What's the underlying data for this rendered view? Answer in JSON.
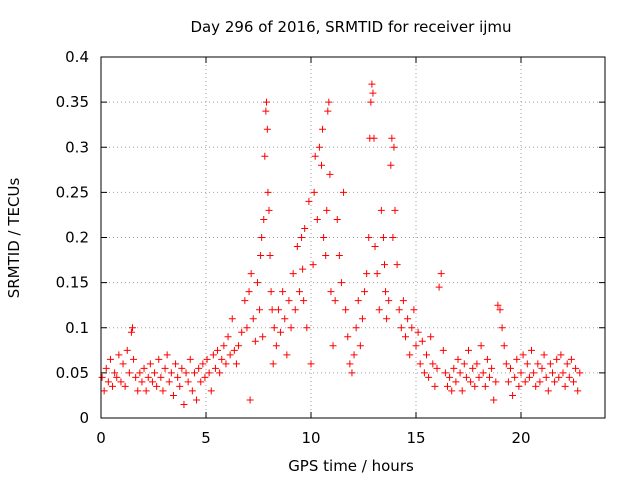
{
  "chart_data": {
    "type": "scatter",
    "title": "Day 296 of 2016, SRMTID for receiver ijmu",
    "xlabel": "GPS time / hours",
    "ylabel": "SRMTID / TECUs",
    "xlim": [
      0,
      24
    ],
    "ylim": [
      0,
      0.4
    ],
    "xticks": [
      0,
      5,
      10,
      15,
      20
    ],
    "yticks": [
      0,
      0.05,
      0.1,
      0.15,
      0.2,
      0.25,
      0.3,
      0.35,
      0.4
    ],
    "xtick_labels": [
      "0",
      "5",
      "10",
      "15",
      "20"
    ],
    "ytick_labels": [
      "0",
      "0.05",
      "0.1",
      "0.15",
      "0.2",
      "0.25",
      "0.3",
      "0.35",
      "0.4"
    ],
    "grid": true,
    "marker": "+",
    "marker_color": "#ff0000",
    "series": [
      {
        "name": "SRMTID",
        "points": [
          [
            0.05,
            0.045
          ],
          [
            0.15,
            0.03
          ],
          [
            0.25,
            0.055
          ],
          [
            0.35,
            0.04
          ],
          [
            0.45,
            0.065
          ],
          [
            0.55,
            0.035
          ],
          [
            0.65,
            0.05
          ],
          [
            0.75,
            0.045
          ],
          [
            0.85,
            0.07
          ],
          [
            0.95,
            0.04
          ],
          [
            1.05,
            0.06
          ],
          [
            1.15,
            0.035
          ],
          [
            1.25,
            0.075
          ],
          [
            1.35,
            0.05
          ],
          [
            1.45,
            0.095
          ],
          [
            1.5,
            0.1
          ],
          [
            1.55,
            0.065
          ],
          [
            1.65,
            0.045
          ],
          [
            1.75,
            0.03
          ],
          [
            1.85,
            0.05
          ],
          [
            1.95,
            0.04
          ],
          [
            2.05,
            0.055
          ],
          [
            2.15,
            0.03
          ],
          [
            2.25,
            0.045
          ],
          [
            2.35,
            0.06
          ],
          [
            2.45,
            0.04
          ],
          [
            2.55,
            0.05
          ],
          [
            2.65,
            0.035
          ],
          [
            2.75,
            0.065
          ],
          [
            2.85,
            0.045
          ],
          [
            2.95,
            0.03
          ],
          [
            3.05,
            0.055
          ],
          [
            3.15,
            0.07
          ],
          [
            3.25,
            0.04
          ],
          [
            3.35,
            0.05
          ],
          [
            3.45,
            0.025
          ],
          [
            3.55,
            0.06
          ],
          [
            3.65,
            0.045
          ],
          [
            3.75,
            0.035
          ],
          [
            3.85,
            0.055
          ],
          [
            3.95,
            0.015
          ],
          [
            4.05,
            0.05
          ],
          [
            4.15,
            0.04
          ],
          [
            4.25,
            0.065
          ],
          [
            4.35,
            0.03
          ],
          [
            4.45,
            0.05
          ],
          [
            4.55,
            0.02
          ],
          [
            4.65,
            0.055
          ],
          [
            4.75,
            0.04
          ],
          [
            4.85,
            0.06
          ],
          [
            4.95,
            0.045
          ],
          [
            5.05,
            0.065
          ],
          [
            5.15,
            0.05
          ],
          [
            5.25,
            0.03
          ],
          [
            5.35,
            0.07
          ],
          [
            5.45,
            0.055
          ],
          [
            5.55,
            0.075
          ],
          [
            5.65,
            0.05
          ],
          [
            5.75,
            0.065
          ],
          [
            5.85,
            0.08
          ],
          [
            5.95,
            0.06
          ],
          [
            6.05,
            0.09
          ],
          [
            6.15,
            0.07
          ],
          [
            6.25,
            0.11
          ],
          [
            6.35,
            0.075
          ],
          [
            6.45,
            0.06
          ],
          [
            6.55,
            0.08
          ],
          [
            6.7,
            0.095
          ],
          [
            6.85,
            0.13
          ],
          [
            6.95,
            0.1
          ],
          [
            7.05,
            0.14
          ],
          [
            7.1,
            0.02
          ],
          [
            7.15,
            0.16
          ],
          [
            7.25,
            0.11
          ],
          [
            7.35,
            0.085
          ],
          [
            7.45,
            0.15
          ],
          [
            7.55,
            0.12
          ],
          [
            7.6,
            0.18
          ],
          [
            7.65,
            0.2
          ],
          [
            7.7,
            0.09
          ],
          [
            7.75,
            0.22
          ],
          [
            7.8,
            0.29
          ],
          [
            7.85,
            0.34
          ],
          [
            7.88,
            0.35
          ],
          [
            7.92,
            0.32
          ],
          [
            7.95,
            0.25
          ],
          [
            8.0,
            0.23
          ],
          [
            8.05,
            0.18
          ],
          [
            8.1,
            0.14
          ],
          [
            8.15,
            0.12
          ],
          [
            8.2,
            0.06
          ],
          [
            8.25,
            0.1
          ],
          [
            8.35,
            0.08
          ],
          [
            8.45,
            0.12
          ],
          [
            8.55,
            0.095
          ],
          [
            8.65,
            0.14
          ],
          [
            8.75,
            0.11
          ],
          [
            8.85,
            0.07
          ],
          [
            8.95,
            0.13
          ],
          [
            9.05,
            0.1
          ],
          [
            9.15,
            0.16
          ],
          [
            9.25,
            0.12
          ],
          [
            9.35,
            0.19
          ],
          [
            9.45,
            0.14
          ],
          [
            9.55,
            0.2
          ],
          [
            9.6,
            0.165
          ],
          [
            9.65,
            0.13
          ],
          [
            9.7,
            0.21
          ],
          [
            9.8,
            0.1
          ],
          [
            9.9,
            0.24
          ],
          [
            10.0,
            0.06
          ],
          [
            10.1,
            0.17
          ],
          [
            10.15,
            0.25
          ],
          [
            10.2,
            0.29
          ],
          [
            10.3,
            0.22
          ],
          [
            10.4,
            0.3
          ],
          [
            10.5,
            0.28
          ],
          [
            10.55,
            0.32
          ],
          [
            10.6,
            0.2
          ],
          [
            10.7,
            0.18
          ],
          [
            10.75,
            0.23
          ],
          [
            10.8,
            0.34
          ],
          [
            10.85,
            0.35
          ],
          [
            10.9,
            0.27
          ],
          [
            10.95,
            0.14
          ],
          [
            11.05,
            0.08
          ],
          [
            11.15,
            0.13
          ],
          [
            11.25,
            0.22
          ],
          [
            11.35,
            0.18
          ],
          [
            11.45,
            0.15
          ],
          [
            11.55,
            0.25
          ],
          [
            11.65,
            0.12
          ],
          [
            11.75,
            0.09
          ],
          [
            11.85,
            0.06
          ],
          [
            11.95,
            0.05
          ],
          [
            12.05,
            0.07
          ],
          [
            12.15,
            0.1
          ],
          [
            12.25,
            0.13
          ],
          [
            12.35,
            0.08
          ],
          [
            12.45,
            0.11
          ],
          [
            12.55,
            0.14
          ],
          [
            12.65,
            0.16
          ],
          [
            12.75,
            0.2
          ],
          [
            12.8,
            0.31
          ],
          [
            12.85,
            0.35
          ],
          [
            12.9,
            0.37
          ],
          [
            12.95,
            0.36
          ],
          [
            13.0,
            0.31
          ],
          [
            13.05,
            0.19
          ],
          [
            13.15,
            0.16
          ],
          [
            13.25,
            0.12
          ],
          [
            13.35,
            0.23
          ],
          [
            13.45,
            0.2
          ],
          [
            13.5,
            0.17
          ],
          [
            13.55,
            0.14
          ],
          [
            13.6,
            0.11
          ],
          [
            13.7,
            0.13
          ],
          [
            13.8,
            0.28
          ],
          [
            13.85,
            0.31
          ],
          [
            13.9,
            0.2
          ],
          [
            13.95,
            0.3
          ],
          [
            14.0,
            0.23
          ],
          [
            14.1,
            0.17
          ],
          [
            14.2,
            0.12
          ],
          [
            14.3,
            0.1
          ],
          [
            14.4,
            0.13
          ],
          [
            14.5,
            0.09
          ],
          [
            14.6,
            0.11
          ],
          [
            14.7,
            0.07
          ],
          [
            14.8,
            0.1
          ],
          [
            14.9,
            0.12
          ],
          [
            15.0,
            0.08
          ],
          [
            15.1,
            0.095
          ],
          [
            15.2,
            0.06
          ],
          [
            15.3,
            0.085
          ],
          [
            15.4,
            0.05
          ],
          [
            15.5,
            0.07
          ],
          [
            15.6,
            0.045
          ],
          [
            15.7,
            0.09
          ],
          [
            15.8,
            0.06
          ],
          [
            15.9,
            0.035
          ],
          [
            16.0,
            0.055
          ],
          [
            16.1,
            0.145
          ],
          [
            16.2,
            0.16
          ],
          [
            16.3,
            0.075
          ],
          [
            16.4,
            0.05
          ],
          [
            16.5,
            0.035
          ],
          [
            16.6,
            0.045
          ],
          [
            16.7,
            0.03
          ],
          [
            16.8,
            0.055
          ],
          [
            16.9,
            0.04
          ],
          [
            17.0,
            0.065
          ],
          [
            17.1,
            0.05
          ],
          [
            17.2,
            0.03
          ],
          [
            17.3,
            0.06
          ],
          [
            17.4,
            0.045
          ],
          [
            17.5,
            0.075
          ],
          [
            17.6,
            0.04
          ],
          [
            17.7,
            0.055
          ],
          [
            17.8,
            0.035
          ],
          [
            17.9,
            0.06
          ],
          [
            18.0,
            0.045
          ],
          [
            18.1,
            0.08
          ],
          [
            18.2,
            0.05
          ],
          [
            18.3,
            0.035
          ],
          [
            18.4,
            0.065
          ],
          [
            18.5,
            0.045
          ],
          [
            18.6,
            0.055
          ],
          [
            18.7,
            0.02
          ],
          [
            18.8,
            0.04
          ],
          [
            18.9,
            0.125
          ],
          [
            19.0,
            0.12
          ],
          [
            19.1,
            0.1
          ],
          [
            19.2,
            0.08
          ],
          [
            19.3,
            0.06
          ],
          [
            19.4,
            0.04
          ],
          [
            19.5,
            0.055
          ],
          [
            19.6,
            0.025
          ],
          [
            19.7,
            0.045
          ],
          [
            19.8,
            0.065
          ],
          [
            19.9,
            0.035
          ],
          [
            20.0,
            0.05
          ],
          [
            20.1,
            0.07
          ],
          [
            20.2,
            0.04
          ],
          [
            20.3,
            0.06
          ],
          [
            20.4,
            0.045
          ],
          [
            20.5,
            0.075
          ],
          [
            20.6,
            0.05
          ],
          [
            20.7,
            0.035
          ],
          [
            20.8,
            0.06
          ],
          [
            20.9,
            0.04
          ],
          [
            21.0,
            0.055
          ],
          [
            21.1,
            0.07
          ],
          [
            21.2,
            0.045
          ],
          [
            21.3,
            0.03
          ],
          [
            21.4,
            0.06
          ],
          [
            21.5,
            0.05
          ],
          [
            21.6,
            0.04
          ],
          [
            21.7,
            0.065
          ],
          [
            21.8,
            0.045
          ],
          [
            21.9,
            0.07
          ],
          [
            22.0,
            0.05
          ],
          [
            22.1,
            0.035
          ],
          [
            22.2,
            0.06
          ],
          [
            22.3,
            0.045
          ],
          [
            22.4,
            0.065
          ],
          [
            22.5,
            0.04
          ],
          [
            22.6,
            0.055
          ],
          [
            22.7,
            0.03
          ],
          [
            22.8,
            0.05
          ]
        ]
      }
    ]
  }
}
